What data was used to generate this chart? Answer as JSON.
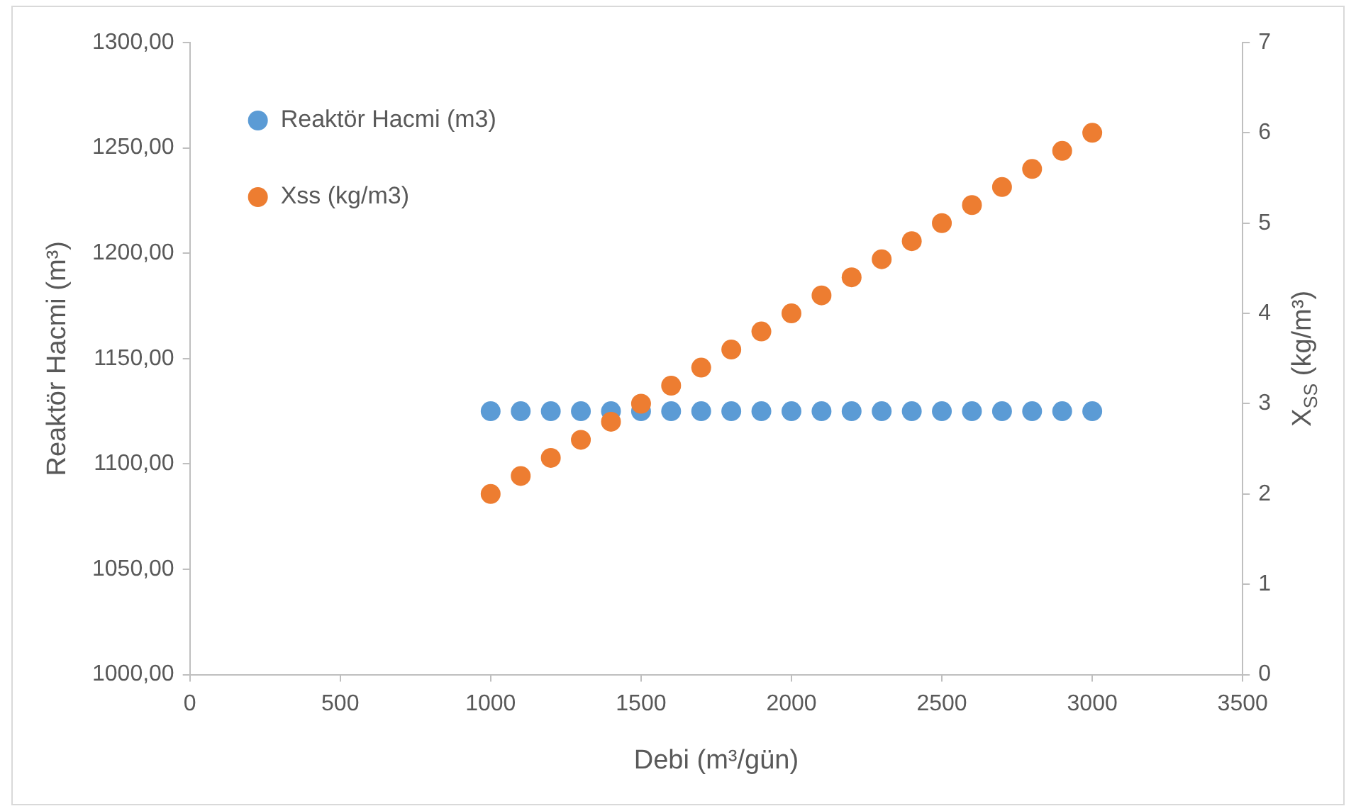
{
  "chart_data": {
    "type": "scatter",
    "xlabel": "Debi (m³/gün)",
    "ylabel": "Reaktör Hacmi (m³)",
    "y2label": "X$_{SS}$ (kg/m³)",
    "x": [
      1000,
      1100,
      1200,
      1300,
      1400,
      1500,
      1600,
      1700,
      1800,
      1900,
      2000,
      2100,
      2200,
      2300,
      2400,
      2500,
      2600,
      2700,
      2800,
      2900,
      3000
    ],
    "series": [
      {
        "name": "Reaktör Hacmi (m3)",
        "color": "#5b9bd5",
        "values": [
          1125,
          1125,
          1125,
          1125,
          1125,
          1125,
          1125,
          1125,
          1125,
          1125,
          1125,
          1125,
          1125,
          1125,
          1125,
          1125,
          1125,
          1125,
          1125,
          1125,
          1125
        ]
      },
      {
        "name": "Xss (kg/m3)",
        "color": "#ed7d31",
        "axis": "y2",
        "values": [
          2.0,
          2.2,
          2.4,
          2.6,
          2.8,
          3.0,
          3.2,
          3.4,
          3.6,
          3.8,
          4.0,
          4.2,
          4.4,
          4.6,
          4.8,
          5.0,
          5.2,
          5.4,
          5.6,
          5.8,
          6.0
        ]
      }
    ],
    "xlim": [
      0,
      3500
    ],
    "xticks": [
      0,
      500,
      1000,
      1500,
      2000,
      2500,
      3000,
      3500
    ],
    "ylim": [
      1000,
      1300
    ],
    "yticks": [
      {
        "value": 1000,
        "label": "1000,00"
      },
      {
        "value": 1050,
        "label": "1050,00"
      },
      {
        "value": 1100,
        "label": "1100,00"
      },
      {
        "value": 1150,
        "label": "1150,00"
      },
      {
        "value": 1200,
        "label": "1200,00"
      },
      {
        "value": 1250,
        "label": "1250,00"
      },
      {
        "value": 1300,
        "label": "1300,00"
      }
    ],
    "y2lim": [
      0,
      7
    ],
    "y2ticks": [
      0,
      1,
      2,
      3,
      4,
      5,
      6,
      7
    ],
    "grid": false,
    "legend": "top left",
    "marker": "circle"
  }
}
